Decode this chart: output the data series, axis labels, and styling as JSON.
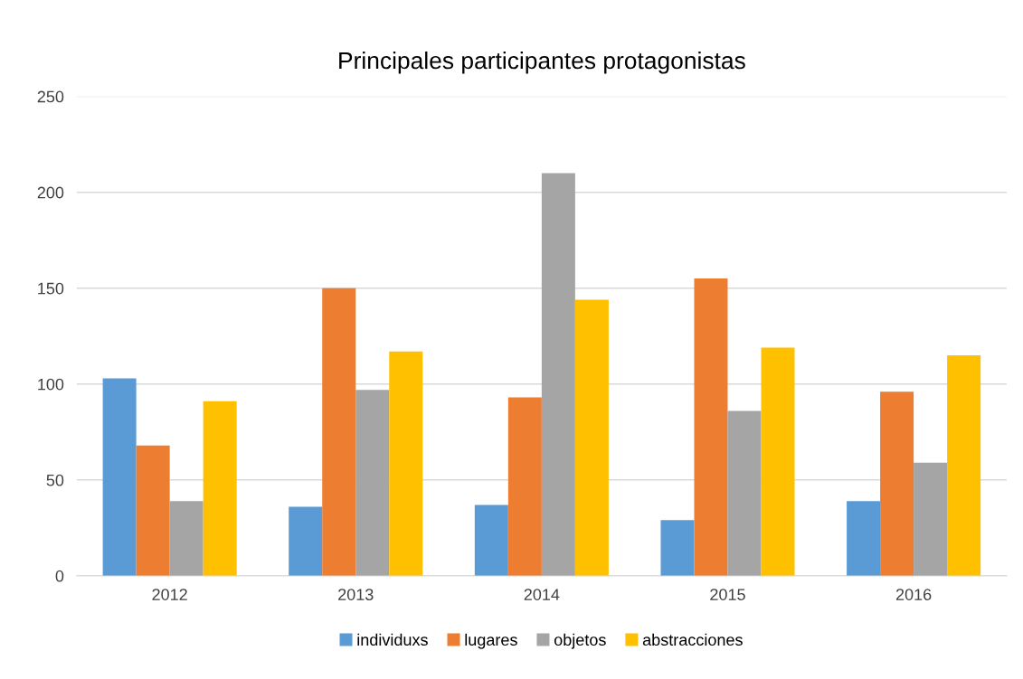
{
  "chart_data": {
    "type": "bar",
    "title": "Principales participantes protagonistas",
    "categories": [
      "2012",
      "2013",
      "2014",
      "2015",
      "2016"
    ],
    "series": [
      {
        "name": "individuxs",
        "color": "#5b9bd5",
        "values": [
          103,
          36,
          37,
          29,
          39
        ]
      },
      {
        "name": "lugares",
        "color": "#ed7d31",
        "values": [
          68,
          150,
          93,
          155,
          96
        ]
      },
      {
        "name": "objetos",
        "color": "#a5a5a5",
        "values": [
          39,
          97,
          210,
          86,
          59
        ]
      },
      {
        "name": "abstracciones",
        "color": "#ffc000",
        "values": [
          91,
          117,
          144,
          119,
          115
        ]
      }
    ],
    "ylim": [
      0,
      250
    ],
    "yticks": [
      0,
      50,
      100,
      150,
      200,
      250
    ],
    "grid": "y",
    "legend": "bottom"
  }
}
